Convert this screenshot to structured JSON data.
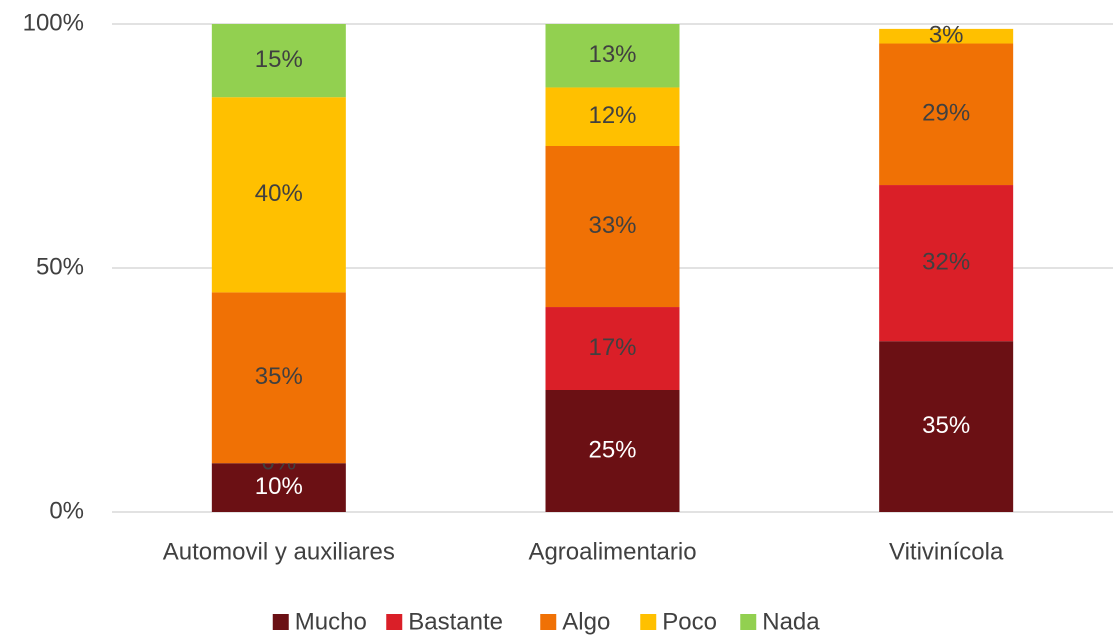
{
  "chart_data": {
    "type": "bar",
    "stacked": true,
    "categories": [
      "Automovil y auxiliares",
      "Agroalimentario",
      "Vitivinícola"
    ],
    "series": [
      {
        "name": "Mucho",
        "color": "#6b1014",
        "label_color": "#ffffff",
        "values": [
          10,
          25,
          35
        ],
        "value_labels": [
          "10%",
          "25%",
          "35%"
        ]
      },
      {
        "name": "Bastante",
        "color": "#da1f28",
        "label_color": "#404040",
        "values": [
          0,
          17,
          32
        ],
        "value_labels": [
          "0%",
          "17%",
          "32%"
        ]
      },
      {
        "name": "Algo",
        "color": "#f07105",
        "label_color": "#404040",
        "values": [
          35,
          33,
          29
        ],
        "value_labels": [
          "35%",
          "33%",
          "29%"
        ]
      },
      {
        "name": "Poco",
        "color": "#ffc000",
        "label_color": "#404040",
        "values": [
          40,
          12,
          3
        ],
        "value_labels": [
          "40%",
          "12%",
          "3%"
        ]
      },
      {
        "name": "Nada",
        "color": "#92d050",
        "label_color": "#404040",
        "values": [
          15,
          13,
          null
        ],
        "value_labels": [
          "15%",
          "13%",
          null
        ]
      }
    ],
    "ylim": [
      0,
      100
    ],
    "yticks": [
      {
        "value": 0,
        "label": "0%"
      },
      {
        "value": 50,
        "label": "50%"
      },
      {
        "value": 100,
        "label": "100%"
      }
    ],
    "grid": true,
    "legend": "bottom"
  }
}
